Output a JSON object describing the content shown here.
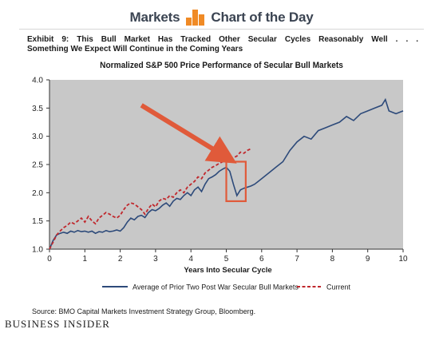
{
  "header": {
    "left": "Markets",
    "right": "Chart of the Day",
    "brand_color": "#f08a25"
  },
  "exhibit": {
    "line1": "Exhibit 9: This Bull Market Has Tracked Other Secular Cycles Reasonably Well . . .",
    "line2": "Something We Expect Will Continue in the Coming Years"
  },
  "chart_data": {
    "type": "line",
    "title": "Normalized S&P 500 Price Performance of Secular Bull Markets",
    "xlabel": "Years Into Secular Cycle",
    "ylabel": "",
    "xlim": [
      0,
      10
    ],
    "ylim": [
      1.0,
      4.0
    ],
    "xticks": [
      "0",
      "1",
      "2",
      "3",
      "4",
      "5",
      "6",
      "7",
      "8",
      "9",
      "10"
    ],
    "yticks": [
      "1.0",
      "1.5",
      "2.0",
      "2.5",
      "3.0",
      "3.5",
      "4.0"
    ],
    "grid": false,
    "plot_background": "#c8c8c8",
    "legend_position": "bottom",
    "series": [
      {
        "name": "Average of Prior Two Post War Secular Bull Markets",
        "color": "#2d4a7a",
        "style": "solid",
        "x": [
          0,
          0.1,
          0.2,
          0.3,
          0.4,
          0.5,
          0.6,
          0.7,
          0.8,
          0.9,
          1.0,
          1.1,
          1.2,
          1.3,
          1.4,
          1.5,
          1.6,
          1.7,
          1.8,
          1.9,
          2.0,
          2.1,
          2.2,
          2.3,
          2.4,
          2.5,
          2.6,
          2.7,
          2.8,
          2.9,
          3.0,
          3.1,
          3.2,
          3.3,
          3.4,
          3.5,
          3.6,
          3.7,
          3.8,
          3.9,
          4.0,
          4.1,
          4.2,
          4.3,
          4.4,
          4.5,
          4.6,
          4.7,
          4.8,
          4.9,
          5.0,
          5.1,
          5.2,
          5.3,
          5.4,
          5.5,
          5.6,
          5.7,
          5.8,
          5.9,
          6.0,
          6.2,
          6.4,
          6.6,
          6.8,
          7.0,
          7.2,
          7.4,
          7.6,
          7.8,
          8.0,
          8.2,
          8.4,
          8.6,
          8.8,
          9.0,
          9.2,
          9.4,
          9.5,
          9.6,
          9.8,
          10.0
        ],
        "y": [
          1.0,
          1.15,
          1.25,
          1.28,
          1.3,
          1.28,
          1.32,
          1.3,
          1.33,
          1.31,
          1.32,
          1.3,
          1.32,
          1.28,
          1.31,
          1.3,
          1.33,
          1.31,
          1.32,
          1.34,
          1.32,
          1.38,
          1.48,
          1.55,
          1.52,
          1.58,
          1.6,
          1.56,
          1.65,
          1.7,
          1.68,
          1.72,
          1.78,
          1.82,
          1.76,
          1.85,
          1.9,
          1.88,
          1.95,
          2.0,
          1.95,
          2.05,
          2.1,
          2.02,
          2.15,
          2.25,
          2.28,
          2.32,
          2.38,
          2.42,
          2.45,
          2.38,
          2.15,
          1.95,
          2.05,
          2.08,
          2.1,
          2.12,
          2.15,
          2.2,
          2.25,
          2.35,
          2.45,
          2.55,
          2.75,
          2.9,
          3.0,
          2.95,
          3.1,
          3.15,
          3.2,
          3.25,
          3.35,
          3.28,
          3.4,
          3.45,
          3.5,
          3.55,
          3.65,
          3.45,
          3.4,
          3.45
        ]
      },
      {
        "name": "Current",
        "color": "#c0282d",
        "style": "dashed",
        "x": [
          0,
          0.1,
          0.2,
          0.3,
          0.4,
          0.5,
          0.6,
          0.7,
          0.8,
          0.9,
          1.0,
          1.1,
          1.2,
          1.3,
          1.4,
          1.5,
          1.6,
          1.7,
          1.8,
          1.9,
          2.0,
          2.1,
          2.2,
          2.3,
          2.4,
          2.5,
          2.6,
          2.7,
          2.8,
          2.9,
          3.0,
          3.1,
          3.2,
          3.3,
          3.4,
          3.5,
          3.6,
          3.7,
          3.8,
          3.9,
          4.0,
          4.1,
          4.2,
          4.3,
          4.4,
          4.5,
          4.6,
          4.7,
          4.8,
          4.9,
          5.0,
          5.1,
          5.2,
          5.3,
          5.4,
          5.5,
          5.6,
          5.7
        ],
        "y": [
          1.0,
          1.12,
          1.25,
          1.32,
          1.38,
          1.42,
          1.48,
          1.45,
          1.5,
          1.55,
          1.48,
          1.58,
          1.5,
          1.45,
          1.55,
          1.6,
          1.65,
          1.62,
          1.58,
          1.55,
          1.6,
          1.7,
          1.78,
          1.82,
          1.8,
          1.75,
          1.7,
          1.62,
          1.72,
          1.8,
          1.75,
          1.85,
          1.9,
          1.88,
          1.95,
          1.92,
          2.0,
          2.05,
          2.0,
          2.1,
          2.15,
          2.2,
          2.28,
          2.25,
          2.35,
          2.4,
          2.45,
          2.48,
          2.52,
          2.55,
          2.58,
          2.6,
          2.62,
          2.65,
          2.72,
          2.7,
          2.75,
          2.78
        ]
      }
    ],
    "annotations": {
      "highlight_box": {
        "x0": 5.0,
        "x1": 5.55,
        "y0": 1.85,
        "y1": 2.55,
        "color": "#e05a3a"
      },
      "arrow": {
        "from_x": 2.6,
        "from_y": 3.55,
        "to_x": 4.95,
        "to_y": 2.65,
        "color": "#e05a3a"
      }
    }
  },
  "footer": {
    "source": "Source: BMO Capital Markets Investment Strategy Group, Bloomberg.",
    "brand": "BUSINESS INSIDER"
  }
}
